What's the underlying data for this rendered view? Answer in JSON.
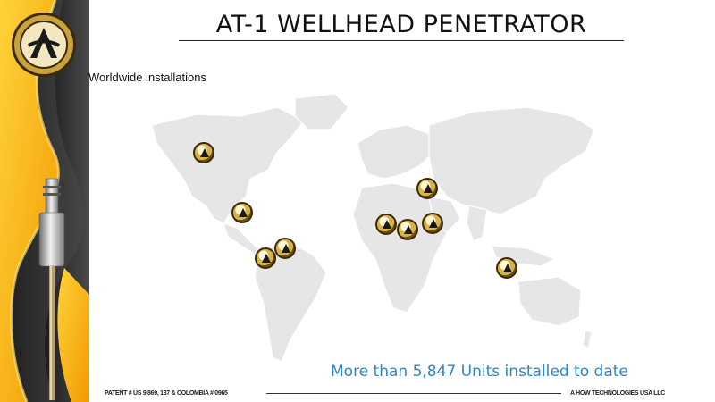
{
  "slide": {
    "title": "AT-1  WELLHEAD PENETRATOR",
    "subtitle": "Worldwide installations",
    "units_text": "More than 5,847 Units installed to date",
    "footer_left": "PATENT # US 9,869, 137 & COLOMBIA # 0965",
    "footer_right": "A HOW TECHNOLOGIES USA LLC"
  },
  "logo": {
    "icon": "company-seal-icon"
  },
  "installations": [
    {
      "region": "canada"
    },
    {
      "region": "usa-gulf"
    },
    {
      "region": "colombia"
    },
    {
      "region": "venezuela"
    },
    {
      "region": "eastern-europe"
    },
    {
      "region": "north-africa"
    },
    {
      "region": "libya"
    },
    {
      "region": "middle-east"
    },
    {
      "region": "indonesia"
    }
  ],
  "colors": {
    "accent_yellow": "#f7b500",
    "dark_band": "#2b2b2b",
    "map_land": "#e6e6e6",
    "units_text": "#2f86c8"
  }
}
